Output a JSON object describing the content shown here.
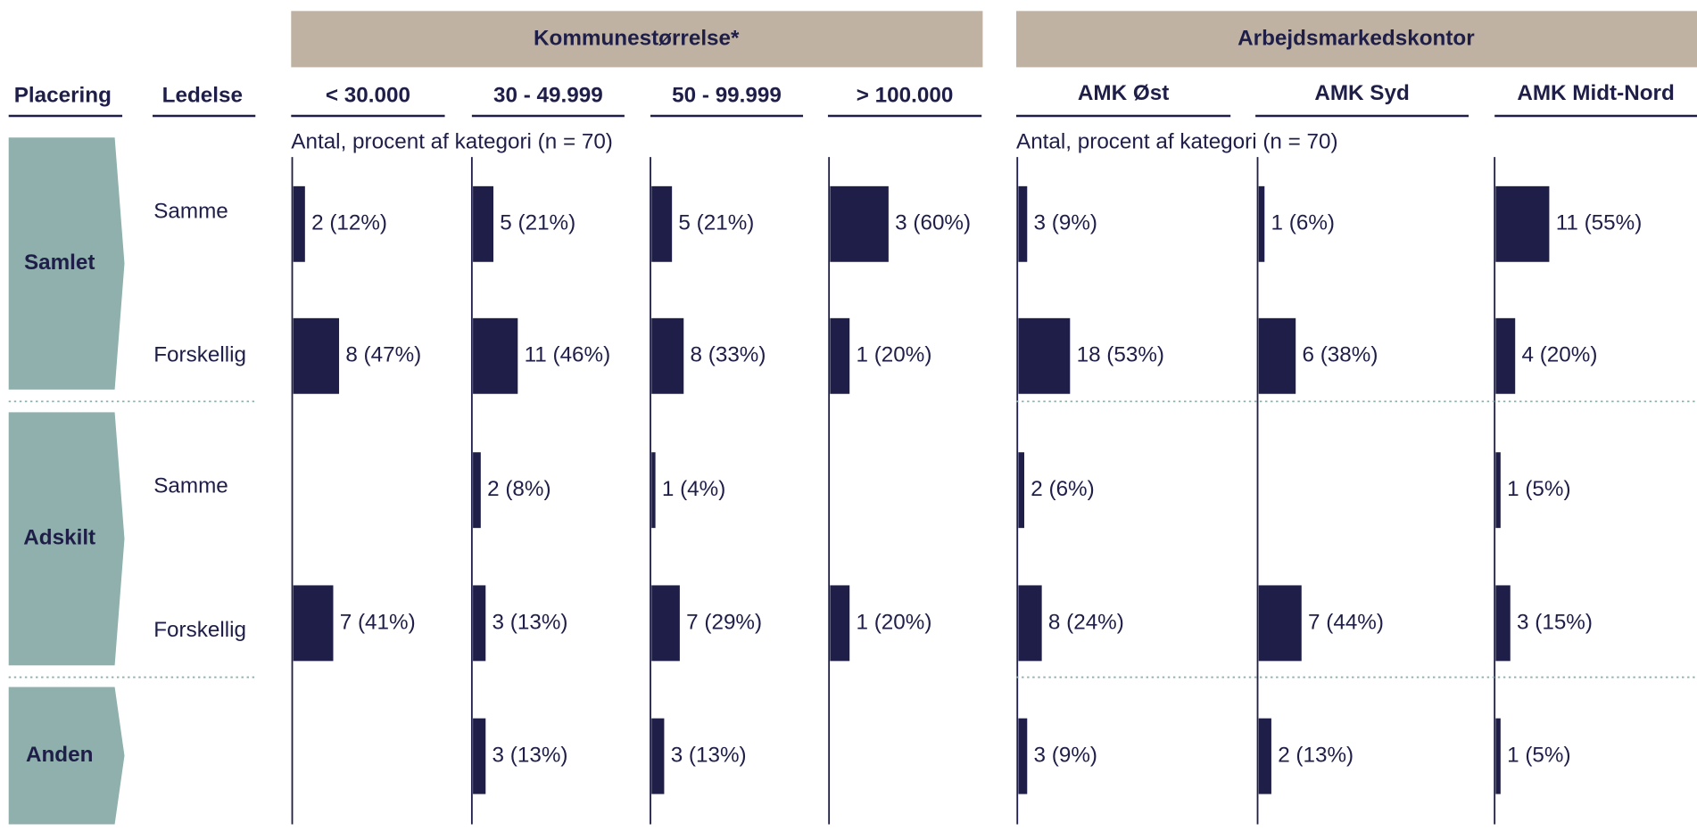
{
  "chart_data": {
    "type": "bar-grid",
    "row_header": "Placering",
    "sub_header": "Ledelse",
    "color": "#1e1e48",
    "xlim": [
      0,
      100
    ],
    "groups": [
      {
        "label": "Kommunestørrelse*",
        "note": "Antal, procent af kategori (n = 70)",
        "columns": [
          "< 30.000",
          "30 - 49.999",
          "50 - 99.999",
          "> 100.000"
        ]
      },
      {
        "label": "Arbejdsmarkedskontor",
        "note": "Antal, procent af kategori (n = 70)",
        "columns": [
          "AMK Øst",
          "AMK Syd",
          "AMK Midt-Nord"
        ]
      }
    ],
    "placements": [
      {
        "label": "Samlet",
        "rows": [
          {
            "name": "Samme",
            "values": [
              12,
              21,
              21,
              60,
              9,
              6,
              55
            ],
            "value_labels": [
              "2 (12%)",
              "5 (21%)",
              "5 (21%)",
              "3 (60%)",
              "3 (9%)",
              "1 (6%)",
              "11 (55%)"
            ]
          },
          {
            "name": "Forskellig",
            "values": [
              47,
              46,
              33,
              20,
              53,
              38,
              20
            ],
            "value_labels": [
              "8 (47%)",
              "11 (46%)",
              "8 (33%)",
              "1 (20%)",
              "18 (53%)",
              "6 (38%)",
              "4 (20%)"
            ]
          }
        ]
      },
      {
        "label": "Adskilt",
        "rows": [
          {
            "name": "Samme",
            "values": [
              null,
              8,
              4,
              null,
              6,
              null,
              5
            ],
            "value_labels": [
              null,
              "2 (8%)",
              "1 (4%)",
              null,
              "2 (6%)",
              null,
              "1 (5%)"
            ]
          },
          {
            "name": "Forskellig",
            "values": [
              41,
              13,
              29,
              20,
              24,
              44,
              15
            ],
            "value_labels": [
              "7 (41%)",
              "3 (13%)",
              "7 (29%)",
              "1 (20%)",
              "8 (24%)",
              "7 (44%)",
              "3 (15%)"
            ]
          }
        ]
      },
      {
        "label": "Anden",
        "rows": [
          {
            "values": [
              null,
              13,
              13,
              null,
              9,
              13,
              5
            ],
            "value_labels": [
              null,
              "3 (13%)",
              "3 (13%)",
              null,
              "3 (9%)",
              "2 (13%)",
              "1 (5%)"
            ]
          }
        ]
      }
    ]
  }
}
